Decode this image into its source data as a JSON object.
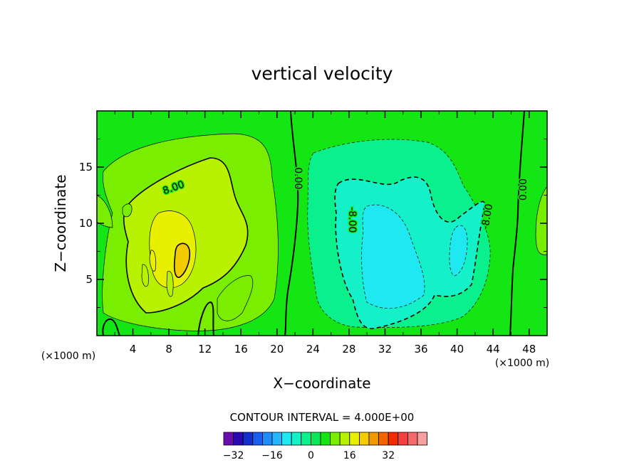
{
  "chart_data": {
    "type": "heatmap",
    "title": "vertical velocity",
    "xlabel": "X−coordinate",
    "ylabel": "Z−coordinate",
    "x_unit": "(×1000 m)",
    "y_unit": "(×1000 m)",
    "xlim": [
      0,
      50
    ],
    "ylim": [
      0,
      20
    ],
    "x_ticks": [
      4,
      8,
      12,
      16,
      20,
      24,
      28,
      32,
      36,
      40,
      44,
      48
    ],
    "y_ticks": [
      5,
      10,
      15
    ],
    "contour_interval_text": "CONTOUR INTERVAL = 4.000E+00",
    "contour_labels": [
      {
        "text": "8.00",
        "x": 8.5,
        "z": 13.2,
        "angle": -20
      },
      {
        "text": "0.00",
        "x": 22.4,
        "z": 14.0,
        "angle": 90
      },
      {
        "text": "-8.00",
        "x": 28.4,
        "z": 10.3,
        "angle": 90
      },
      {
        "text": "-8.00",
        "x": 43.3,
        "z": 10.6,
        "angle": -80
      },
      {
        "text": "0.00",
        "x": 47.3,
        "z": 13.0,
        "angle": -90
      }
    ],
    "colorbar": {
      "levels_min": -36,
      "levels_step": 4,
      "colors": [
        "#6a0dad",
        "#2a0ab0",
        "#1230cc",
        "#1a5ef0",
        "#1e8cff",
        "#26b4ff",
        "#1ee8f0",
        "#14f0c8",
        "#0af08c",
        "#0ae85a",
        "#14e614",
        "#7aee00",
        "#b8f200",
        "#e8f000",
        "#f2cc00",
        "#f29800",
        "#f26400",
        "#f22c00",
        "#f24040",
        "#f46a6a",
        "#f6a0a0"
      ],
      "tick_labels": [
        "−32",
        "−16",
        "0",
        "16",
        "32"
      ],
      "tick_values": [
        -32,
        -16,
        0,
        16,
        32
      ]
    }
  }
}
